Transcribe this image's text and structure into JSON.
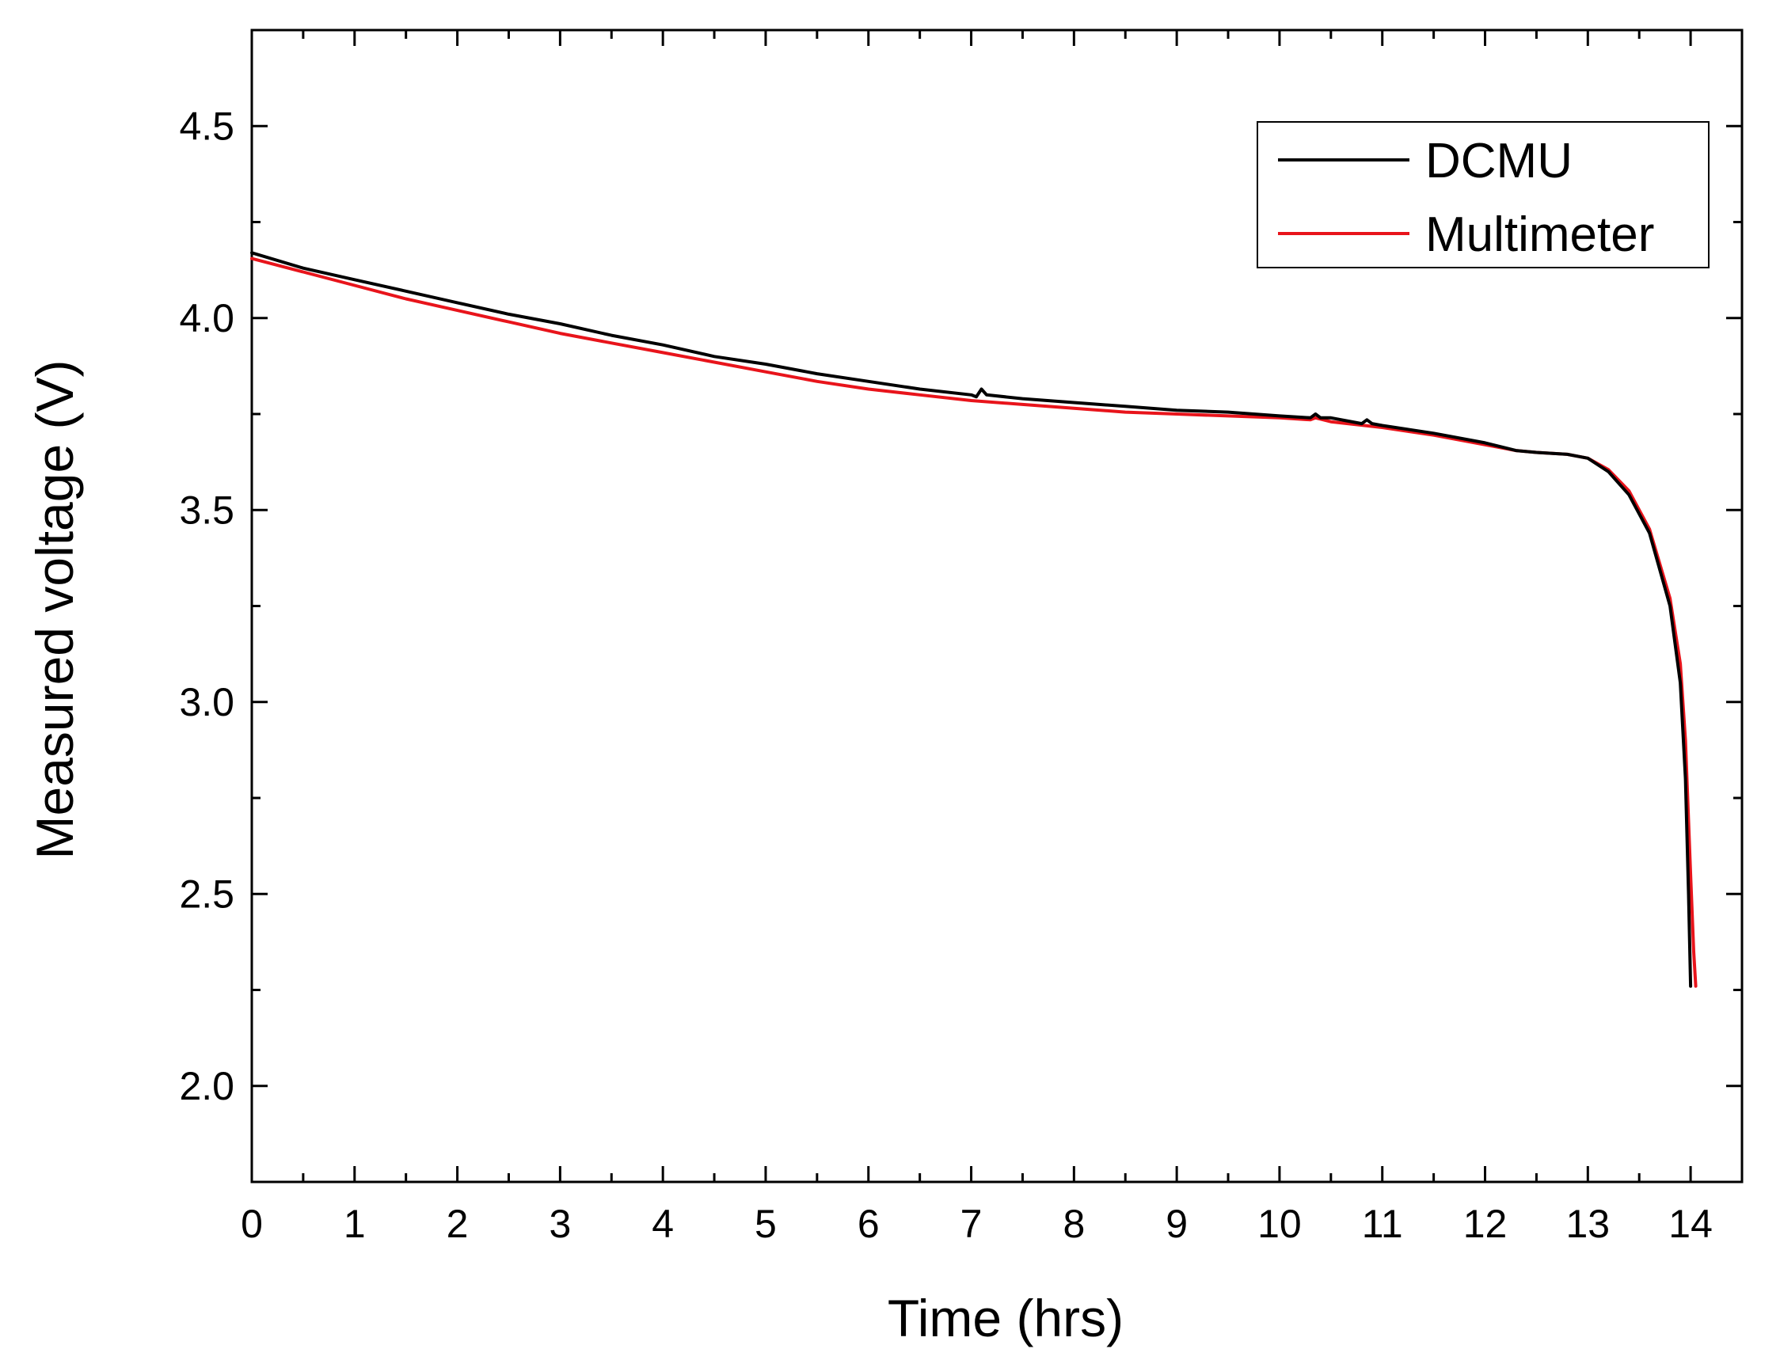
{
  "chart_data": {
    "type": "line",
    "title": "",
    "xlabel": "Time (hrs)",
    "ylabel": "Measured voltage (V)",
    "xlim": [
      0,
      14.5
    ],
    "ylim": [
      1.75,
      4.75
    ],
    "xticks": [
      0,
      1,
      2,
      3,
      4,
      5,
      6,
      7,
      8,
      9,
      10,
      11,
      12,
      13,
      14
    ],
    "xtick_labels": [
      "0",
      "1",
      "2",
      "3",
      "4",
      "5",
      "6",
      "7",
      "8",
      "9",
      "10",
      "11",
      "12",
      "13",
      "14"
    ],
    "yticks": [
      2.0,
      2.5,
      3.0,
      3.5,
      4.0,
      4.5
    ],
    "ytick_labels": [
      "2.0",
      "2.5",
      "3.0",
      "3.5",
      "4.0",
      "4.5"
    ],
    "grid": false,
    "legend_position": "top-right",
    "series": [
      {
        "name": "DCMU",
        "color": "#000000",
        "x": [
          0,
          0.5,
          1,
          1.5,
          2,
          2.5,
          3,
          3.5,
          4,
          4.5,
          5,
          5.5,
          6,
          6.5,
          7,
          7.05,
          7.1,
          7.15,
          7.5,
          8,
          8.5,
          9,
          9.5,
          10,
          10.3,
          10.35,
          10.4,
          10.5,
          10.8,
          10.85,
          10.9,
          11,
          11.5,
          12,
          12.3,
          12.5,
          12.8,
          13.0,
          13.2,
          13.4,
          13.6,
          13.8,
          13.9,
          13.95,
          13.98,
          14.0
        ],
        "y": [
          4.17,
          4.13,
          4.1,
          4.07,
          4.04,
          4.01,
          3.985,
          3.955,
          3.93,
          3.9,
          3.88,
          3.855,
          3.835,
          3.815,
          3.8,
          3.795,
          3.815,
          3.8,
          3.79,
          3.78,
          3.77,
          3.76,
          3.755,
          3.745,
          3.74,
          3.75,
          3.74,
          3.74,
          3.725,
          3.735,
          3.725,
          3.72,
          3.7,
          3.675,
          3.655,
          3.65,
          3.645,
          3.635,
          3.6,
          3.54,
          3.44,
          3.25,
          3.05,
          2.8,
          2.5,
          2.26
        ]
      },
      {
        "name": "Multimeter",
        "color": "#e8141b",
        "x": [
          0,
          0.5,
          1,
          1.5,
          2,
          2.5,
          3,
          3.5,
          4,
          4.5,
          5,
          5.5,
          6,
          6.5,
          7,
          7.5,
          8,
          8.5,
          9,
          9.5,
          10,
          10.3,
          10.35,
          10.5,
          11,
          11.5,
          12,
          12.3,
          12.5,
          12.8,
          13.0,
          13.2,
          13.4,
          13.6,
          13.8,
          13.9,
          13.95,
          14.0,
          14.03,
          14.05
        ],
        "y": [
          4.155,
          4.12,
          4.085,
          4.05,
          4.02,
          3.99,
          3.96,
          3.935,
          3.91,
          3.885,
          3.86,
          3.835,
          3.815,
          3.8,
          3.785,
          3.775,
          3.765,
          3.755,
          3.75,
          3.745,
          3.74,
          3.735,
          3.74,
          3.73,
          3.715,
          3.695,
          3.67,
          3.655,
          3.65,
          3.645,
          3.635,
          3.605,
          3.55,
          3.45,
          3.27,
          3.1,
          2.9,
          2.55,
          2.35,
          2.26
        ]
      }
    ]
  }
}
